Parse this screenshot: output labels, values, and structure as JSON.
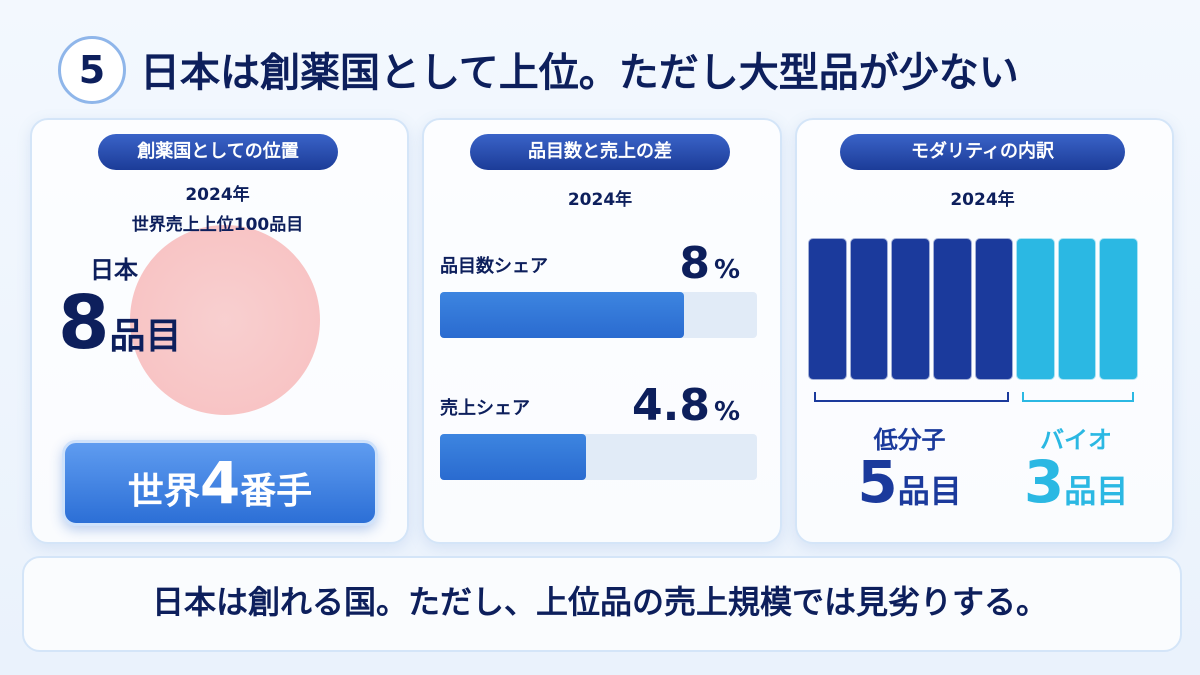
{
  "header": {
    "number": "5",
    "title": "日本は創薬国として上位。ただし大型品が少ない"
  },
  "panels": [
    {
      "label": "創薬国としての位置",
      "year": "2024年",
      "subtitle": "世界売上上位100品目",
      "country": "日本",
      "count": 8,
      "unit": "品目",
      "rank": {
        "prefix": "世界",
        "number": 4,
        "suffix": "番手"
      }
    },
    {
      "label": "品目数と売上の差",
      "year": "2024年",
      "rows": [
        {
          "name": "品目数シェア",
          "value": 8,
          "unit": "%"
        },
        {
          "name": "売上シェア",
          "value": 4.8,
          "unit": "%"
        }
      ]
    },
    {
      "label": "モダリティの内訳",
      "year": "2024年",
      "groups": [
        {
          "name": "低分子",
          "count": 5,
          "unit": "品目",
          "color": "#1b3a9c"
        },
        {
          "name": "バイオ",
          "count": 3,
          "unit": "品目",
          "color": "#2bb8e3"
        }
      ]
    }
  ],
  "footer": "日本は創れる国。ただし、上位品の売上規模では見劣りする。"
}
